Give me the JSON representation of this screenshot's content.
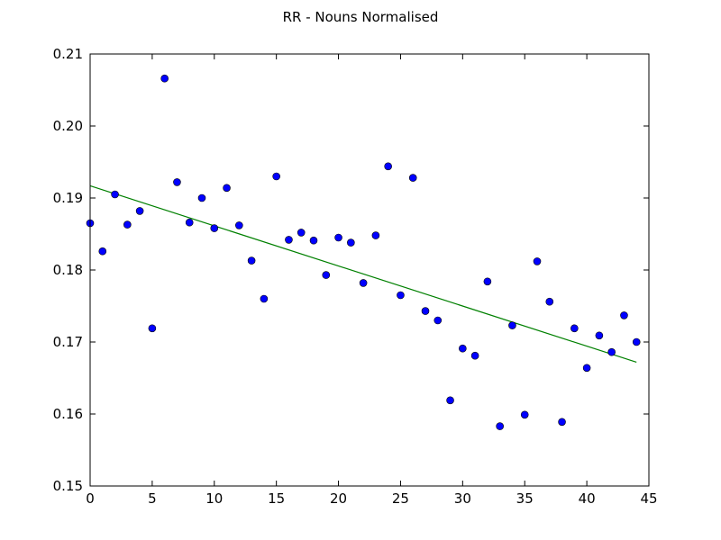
{
  "chart_data": {
    "type": "scatter",
    "title": "RR - Nouns Normalised",
    "xlabel": "",
    "ylabel": "",
    "xlim": [
      0,
      45
    ],
    "ylim": [
      0.15,
      0.21
    ],
    "xticks": [
      0,
      5,
      10,
      15,
      20,
      25,
      30,
      35,
      40,
      45
    ],
    "xtick_labels": [
      "0",
      "5",
      "10",
      "15",
      "20",
      "25",
      "30",
      "35",
      "40",
      "45"
    ],
    "yticks": [
      0.15,
      0.16,
      0.17,
      0.18,
      0.19,
      0.2,
      0.21
    ],
    "ytick_labels": [
      "0.15",
      "0.16",
      "0.17",
      "0.18",
      "0.19",
      "0.20",
      "0.21"
    ],
    "grid": false,
    "series": [
      {
        "kind": "scatter",
        "color": "#0000ff",
        "x": [
          0,
          1,
          2,
          3,
          4,
          5,
          6,
          7,
          8,
          9,
          10,
          11,
          12,
          13,
          14,
          15,
          16,
          17,
          18,
          19,
          20,
          21,
          22,
          23,
          24,
          25,
          26,
          27,
          28,
          29,
          30,
          31,
          32,
          33,
          34,
          35,
          36,
          37,
          38,
          39,
          40,
          41,
          42,
          43,
          44
        ],
        "y": [
          0.1865,
          0.1826,
          0.1905,
          0.1863,
          0.1882,
          0.1719,
          0.2066,
          0.1922,
          0.1866,
          0.19,
          0.1858,
          0.1914,
          0.1862,
          0.1813,
          0.176,
          0.193,
          0.1842,
          0.1852,
          0.1841,
          0.1793,
          0.1845,
          0.1838,
          0.1782,
          0.1848,
          0.1944,
          0.1765,
          0.1928,
          0.1743,
          0.173,
          0.1619,
          0.1691,
          0.1681,
          0.1784,
          0.1583,
          0.1723,
          0.1599,
          0.1812,
          0.1756,
          0.1589,
          0.1719,
          0.1664,
          0.1709,
          0.1686,
          0.1737,
          0.17
        ]
      },
      {
        "kind": "line",
        "color": "#008000",
        "x": [
          0,
          44
        ],
        "y": [
          0.1917,
          0.1672
        ]
      }
    ]
  }
}
